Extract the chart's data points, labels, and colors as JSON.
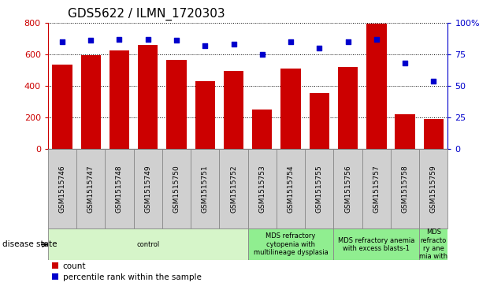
{
  "title": "GDS5622 / ILMN_1720303",
  "samples": [
    "GSM1515746",
    "GSM1515747",
    "GSM1515748",
    "GSM1515749",
    "GSM1515750",
    "GSM1515751",
    "GSM1515752",
    "GSM1515753",
    "GSM1515754",
    "GSM1515755",
    "GSM1515756",
    "GSM1515757",
    "GSM1515758",
    "GSM1515759"
  ],
  "counts": [
    535,
    595,
    625,
    660,
    565,
    430,
    495,
    248,
    510,
    353,
    520,
    795,
    220,
    188
  ],
  "percentiles": [
    85,
    86,
    87,
    87,
    86,
    82,
    83,
    75,
    85,
    80,
    85,
    87,
    68,
    54
  ],
  "bar_color": "#cc0000",
  "dot_color": "#0000cc",
  "ylim_left": [
    0,
    800
  ],
  "ylim_right": [
    0,
    100
  ],
  "yticks_left": [
    0,
    200,
    400,
    600,
    800
  ],
  "yticks_right": [
    0,
    25,
    50,
    75,
    100
  ],
  "disease_groups": [
    {
      "label": "control",
      "start": 0,
      "end": 7,
      "color": "#d6f5c9"
    },
    {
      "label": "MDS refractory\ncytopenia with\nmultilineage dysplasia",
      "start": 7,
      "end": 10,
      "color": "#90ee90"
    },
    {
      "label": "MDS refractory anemia\nwith excess blasts-1",
      "start": 10,
      "end": 13,
      "color": "#90ee90"
    },
    {
      "label": "MDS\nrefracto\nry ane\nmia with",
      "start": 13,
      "end": 14,
      "color": "#90ee90"
    }
  ],
  "disease_state_label": "disease state",
  "legend_count_label": "count",
  "legend_pct_label": "percentile rank within the sample",
  "tick_label_color_left": "#cc0000",
  "tick_label_color_right": "#0000cc"
}
